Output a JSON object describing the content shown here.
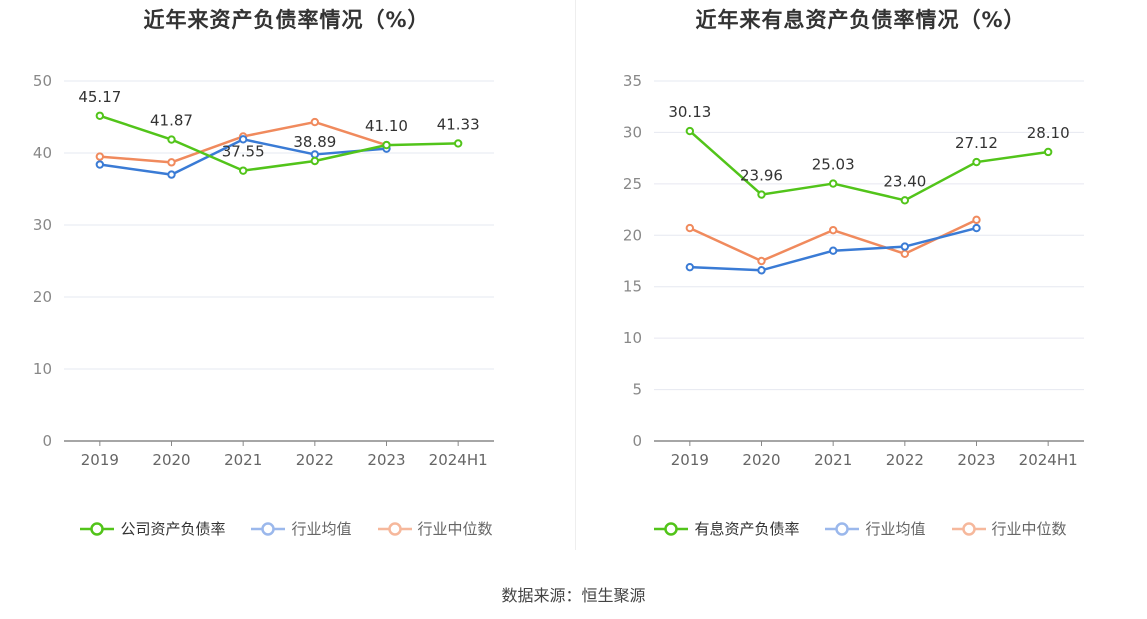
{
  "source_text": "数据来源：恒生聚源",
  "chart_data": [
    {
      "type": "line",
      "title": "近年来资产负债率情况（%）",
      "categories": [
        "2019",
        "2020",
        "2021",
        "2022",
        "2023",
        "2024H1"
      ],
      "ylim": [
        0,
        50
      ],
      "yticks": [
        0,
        10,
        20,
        30,
        40,
        50
      ],
      "grid": true,
      "legend_position": "bottom",
      "series": [
        {
          "name": "公司资产负债率",
          "color": "#52c41a",
          "values": [
            45.17,
            41.87,
            37.55,
            38.89,
            41.1,
            41.33
          ],
          "labels": [
            "45.17",
            "41.87",
            "37.55",
            "38.89",
            "41.10",
            "41.33"
          ]
        },
        {
          "name": "行业均值",
          "color": "#3a7bd5",
          "values": [
            38.4,
            37.0,
            41.9,
            39.8,
            40.6,
            null
          ]
        },
        {
          "name": "行业中位数",
          "color": "#f08a5d",
          "values": [
            39.5,
            38.7,
            42.3,
            44.3,
            41.1,
            null
          ]
        }
      ]
    },
    {
      "type": "line",
      "title": "近年来有息资产负债率情况（%）",
      "categories": [
        "2019",
        "2020",
        "2021",
        "2022",
        "2023",
        "2024H1"
      ],
      "ylim": [
        0,
        35
      ],
      "yticks": [
        0,
        5,
        10,
        15,
        20,
        25,
        30,
        35
      ],
      "grid": true,
      "legend_position": "bottom",
      "series": [
        {
          "name": "有息资产负债率",
          "color": "#52c41a",
          "values": [
            30.13,
            23.96,
            25.03,
            23.4,
            27.12,
            28.1
          ],
          "labels": [
            "30.13",
            "23.96",
            "25.03",
            "23.40",
            "27.12",
            "28.10"
          ]
        },
        {
          "name": "行业均值",
          "color": "#3a7bd5",
          "values": [
            16.9,
            16.6,
            18.5,
            18.9,
            20.7,
            null
          ]
        },
        {
          "name": "行业中位数",
          "color": "#f08a5d",
          "values": [
            20.7,
            17.5,
            20.5,
            18.2,
            21.5,
            null
          ]
        }
      ]
    }
  ]
}
